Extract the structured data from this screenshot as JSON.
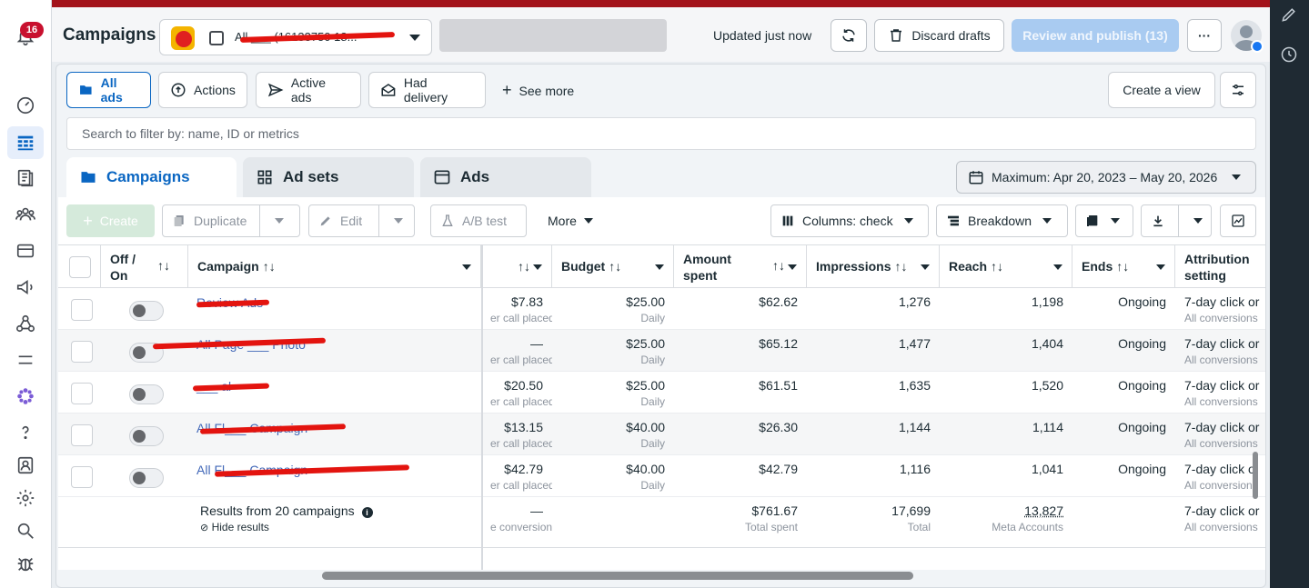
{
  "nav": {
    "notification_count": "16",
    "items": [
      "bell-icon",
      "dashboard-icon",
      "campaigns-table-icon",
      "catalog-icon",
      "audiences-icon",
      "billing-icon",
      "ads-megaphone-icon",
      "network-icon",
      "menu-icon",
      "apps-flower-icon",
      "help-icon",
      "contacts-icon",
      "settings-icon",
      "search-icon",
      "bug-icon"
    ]
  },
  "header": {
    "title": "Campaigns",
    "account_name": "All ___ (16133750 18...",
    "updated": "Updated just now",
    "discard": "Discard drafts",
    "publish": "Review and publish (13)",
    "more": "···"
  },
  "views": {
    "all_ads": "All ads",
    "actions": "Actions",
    "active_ads": "Active ads",
    "had_delivery": "Had delivery",
    "see_more": "See more",
    "create_view": "Create a view"
  },
  "search": {
    "placeholder": "Search to filter by: name, ID or metrics"
  },
  "tabs": {
    "campaigns": "Campaigns",
    "ad_sets": "Ad sets",
    "ads": "Ads"
  },
  "date_range": "Maximum: Apr 20, 2023 – May 20, 2026",
  "toolbar": {
    "create": "Create",
    "duplicate": "Duplicate",
    "edit": "Edit",
    "ab_test": "A/B test",
    "more": "More",
    "columns": "Columns: check",
    "breakdown": "Breakdown"
  },
  "columns": {
    "off_on": "Off / On",
    "campaign": "Campaign",
    "budget": "Budget",
    "amount_spent": "Amount spent",
    "impressions": "Impressions",
    "reach": "Reach",
    "ends": "Ends",
    "attribution": "Attribution setting"
  },
  "rows": [
    {
      "name": "Review Ads",
      "cost": "$7.83",
      "cost_sub": "er call placed",
      "budget": "$25.00",
      "budget_sub": "Daily",
      "spent": "$62.62",
      "impressions": "1,276",
      "reach": "1,198",
      "ends": "Ongoing",
      "attribution": "7-day click or",
      "attribution_sub": "All conversions"
    },
    {
      "name": "All Page ___ Photo",
      "cost": "—",
      "cost_sub": "er call placed",
      "budget": "$25.00",
      "budget_sub": "Daily",
      "spent": "$65.12",
      "impressions": "1,477",
      "reach": "1,404",
      "ends": "Ongoing",
      "attribution": "7-day click or",
      "attribution_sub": "All conversions"
    },
    {
      "name": "___ al",
      "cost": "$20.50",
      "cost_sub": "er call placed",
      "budget": "$25.00",
      "budget_sub": "Daily",
      "spent": "$61.51",
      "impressions": "1,635",
      "reach": "1,520",
      "ends": "Ongoing",
      "attribution": "7-day click or",
      "attribution_sub": "All conversions"
    },
    {
      "name": "All Fl___ Campaign",
      "cost": "$13.15",
      "cost_sub": "er call placed",
      "budget": "$40.00",
      "budget_sub": "Daily",
      "spent": "$26.30",
      "impressions": "1,144",
      "reach": "1,114",
      "ends": "Ongoing",
      "attribution": "7-day click or",
      "attribution_sub": "All conversions"
    },
    {
      "name": "All Fl___ Campaign",
      "cost": "$42.79",
      "cost_sub": "er call placed",
      "budget": "$40.00",
      "budget_sub": "Daily",
      "spent": "$42.79",
      "impressions": "1,116",
      "reach": "1,041",
      "ends": "Ongoing",
      "attribution": "7-day click o",
      "attribution_sub": "All conversions"
    }
  ],
  "summary": {
    "label": "Results from 20 campaigns",
    "hide": "Hide results",
    "cost": "—",
    "cost_sub": "e conversions",
    "spent": "$761.67",
    "spent_sub": "Total spent",
    "impressions": "17,699",
    "impressions_sub": "Total",
    "reach": "13,827",
    "reach_sub": "Meta Accounts",
    "attribution": "7-day click or",
    "attribution_sub": "All conversions"
  }
}
